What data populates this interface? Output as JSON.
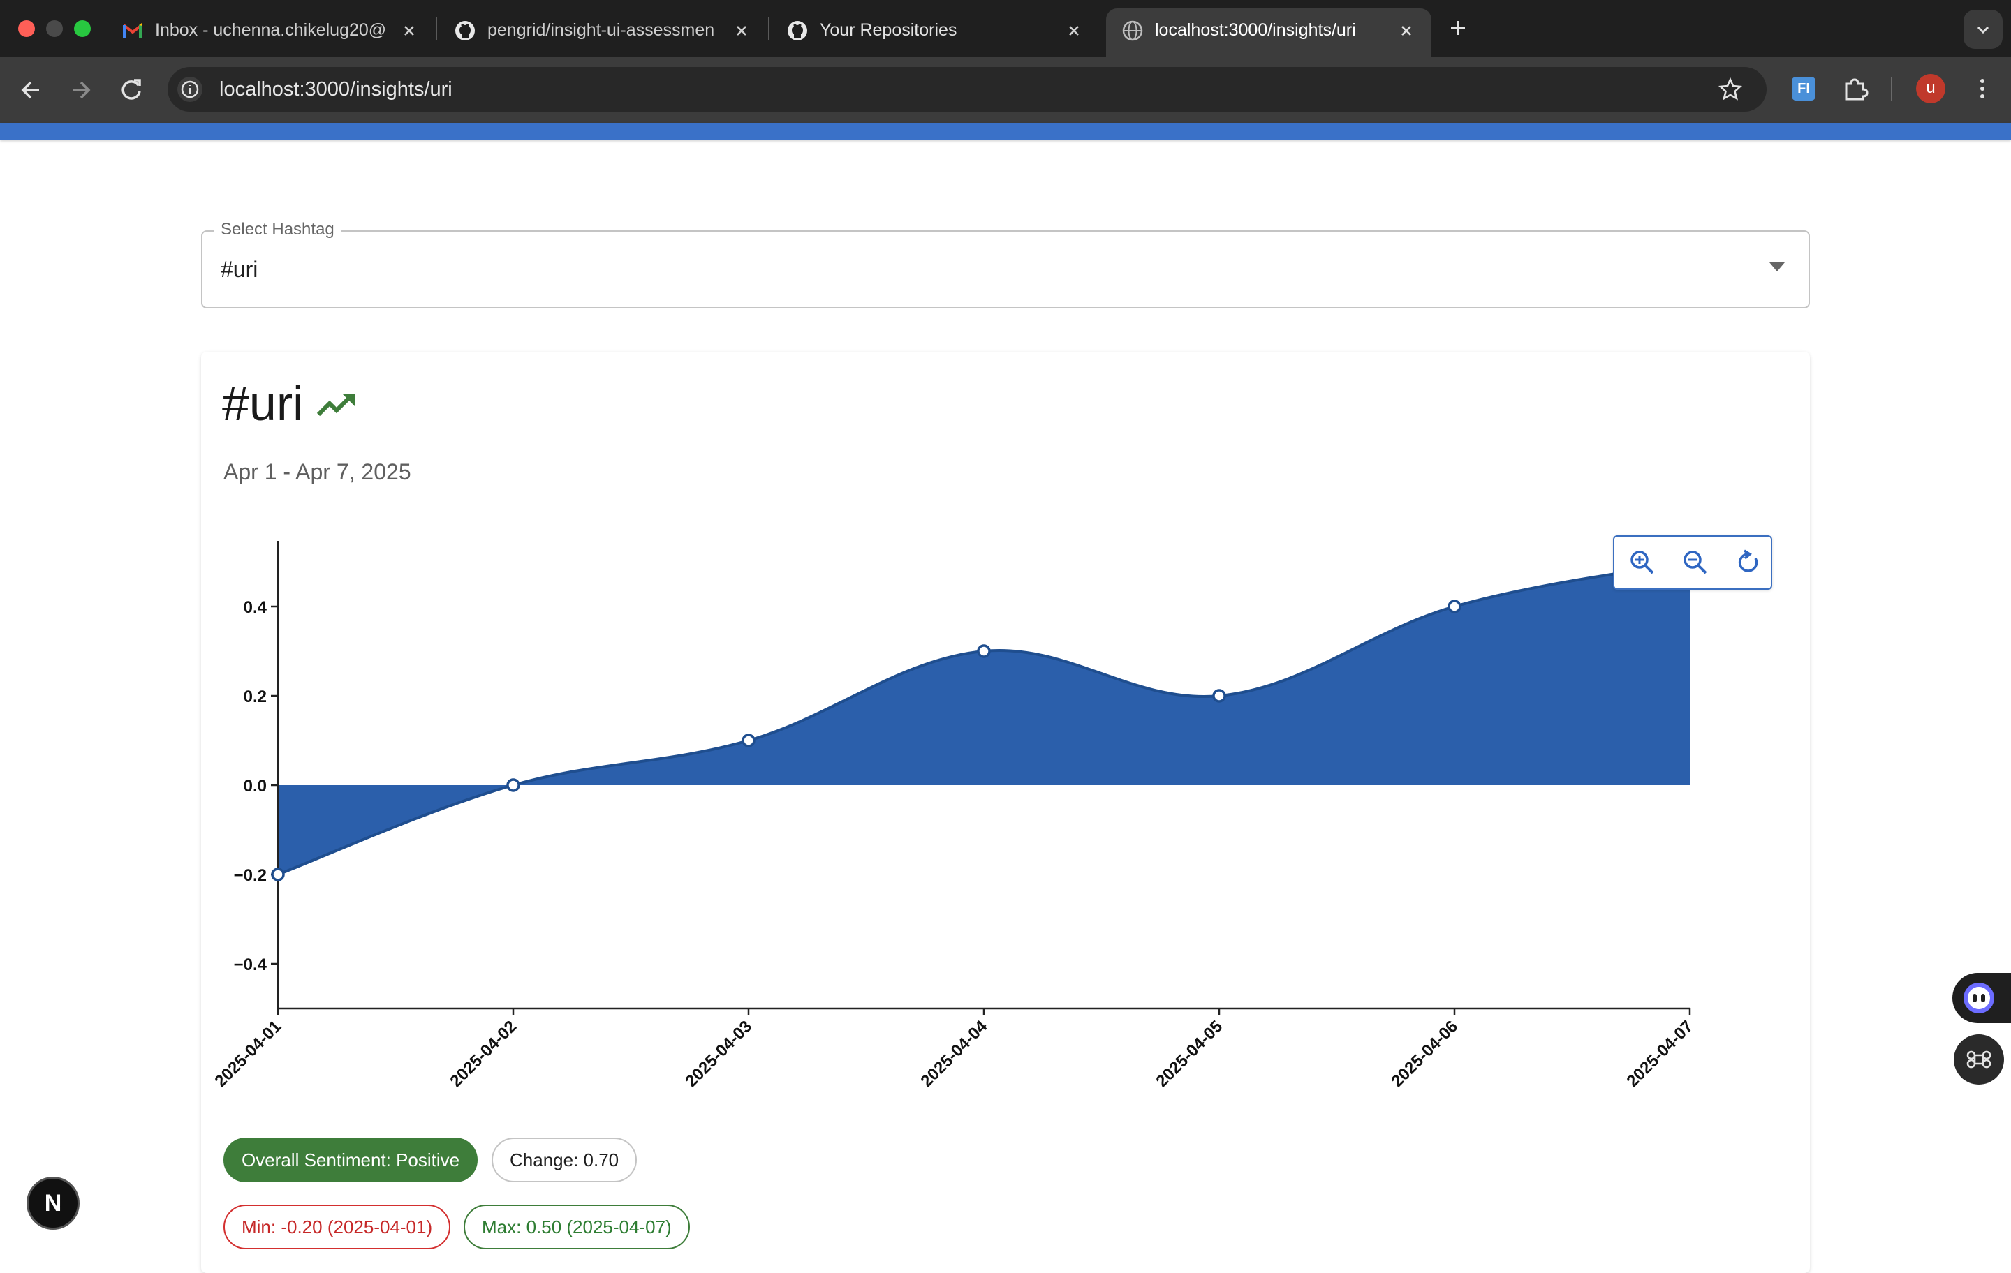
{
  "browser": {
    "tabs": [
      {
        "title": "Inbox - uchenna.chikelug20@",
        "icon": "gmail-icon"
      },
      {
        "title": "pengrid/insight-ui-assessmen",
        "icon": "github-icon"
      },
      {
        "title": "Your Repositories",
        "icon": "github-icon"
      },
      {
        "title": "localhost:3000/insights/uri",
        "icon": "globe-icon"
      }
    ],
    "url": "localhost:3000/insights/uri",
    "profile_initial": "u",
    "extension_label": "FI"
  },
  "page": {
    "select_label": "Select Hashtag",
    "select_value": "#uri",
    "title": "#uri",
    "date_range": "Apr 1 - Apr 7, 2025",
    "chips": {
      "overall": "Overall Sentiment: Positive",
      "change": "Change: 0.70",
      "min": "Min: -0.20 (2025-04-01)",
      "max": "Max: 0.50 (2025-04-07)"
    },
    "nextjs_badge": "N"
  },
  "colors": {
    "area_fill": "#2b5fab",
    "line": "#1f4e8f",
    "positive": "#3e7d3a",
    "negative": "#d32f2f"
  },
  "chart_data": {
    "type": "area",
    "x": [
      "2025-04-01",
      "2025-04-02",
      "2025-04-03",
      "2025-04-04",
      "2025-04-05",
      "2025-04-06",
      "2025-04-07"
    ],
    "values": [
      -0.2,
      0.0,
      0.1,
      0.3,
      0.2,
      0.4,
      0.5
    ],
    "yticks": [
      -0.4,
      -0.2,
      0.0,
      0.2,
      0.4
    ],
    "ytick_labels": [
      "−0.4",
      "−0.2",
      "0.0",
      "0.2",
      "0.4"
    ],
    "ylim": [
      -0.5,
      0.5
    ],
    "title": "#uri",
    "xlabel": "",
    "ylabel": "",
    "grid": false
  }
}
